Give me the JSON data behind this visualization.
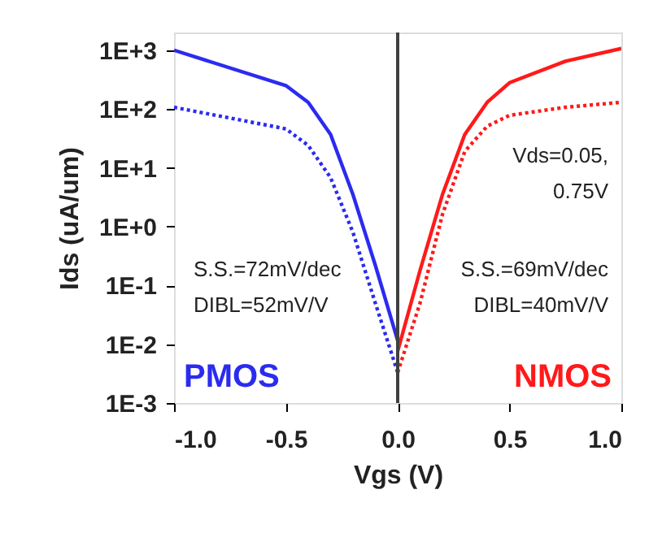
{
  "chart_data": {
    "type": "line",
    "xlabel": "Vgs (V)",
    "ylabel": "Ids (uA/um)",
    "log": "y",
    "grid": false,
    "marker": "none",
    "xlim": [
      -1,
      1
    ],
    "ylim": [
      0.001,
      2000
    ],
    "xticks": [
      {
        "value": -1,
        "label": "-1.0"
      },
      {
        "value": -0.5,
        "label": "-0.5"
      },
      {
        "value": 0,
        "label": "0.0"
      },
      {
        "value": 0.5,
        "label": "0.5"
      },
      {
        "value": 1,
        "label": "1.0"
      }
    ],
    "yticks": [
      {
        "value": 0.001,
        "label": "1E-3"
      },
      {
        "value": 0.01,
        "label": "1E-2"
      },
      {
        "value": 0.1,
        "label": "1E-1"
      },
      {
        "value": 1,
        "label": "1E+0"
      },
      {
        "value": 10,
        "label": "1E+1"
      },
      {
        "value": 100,
        "label": "1E+2"
      },
      {
        "value": 1000,
        "label": "1E+3"
      }
    ],
    "series": [
      {
        "name": "PMOS",
        "color": "#2b2bf0",
        "line_style": "solid",
        "x": [
          -1,
          -0.5,
          -0.4,
          -0.3,
          -0.2,
          -0.1,
          0
        ],
        "values": [
          1000,
          250,
          130,
          37,
          3.5,
          0.22,
          0.0115
        ]
      },
      {
        "color": "#2b2bf0",
        "line_style": "dotted",
        "x": [
          -1,
          -0.5,
          -0.4,
          -0.3,
          -0.2,
          -0.1,
          0
        ],
        "values": [
          107,
          46,
          24,
          6.8,
          0.8,
          0.05,
          0.0033
        ]
      },
      {
        "name": "NMOS",
        "color": "#ff1a1a",
        "line_style": "solid",
        "x": [
          0,
          0.1,
          0.2,
          0.3,
          0.4,
          0.5,
          0.75,
          1
        ],
        "values": [
          0.0076,
          0.18,
          3.5,
          37,
          130,
          280,
          650,
          1070
        ]
      },
      {
        "color": "#ff1a1a",
        "line_style": "dotted",
        "x": [
          0,
          0.1,
          0.2,
          0.3,
          0.4,
          0.5,
          0.75,
          1
        ],
        "values": [
          0.0033,
          0.05,
          1.6,
          19,
          51,
          78,
          107,
          130
        ]
      }
    ],
    "ref_lines": [
      {
        "axis": "x",
        "value": 0,
        "color": "#404040",
        "line_style": "solid"
      }
    ],
    "annotations": [
      "S.S.=72mV/dec\nDIBL=52mV/V",
      "S.S.=69mV/dec\nDIBL=40mV/V",
      "Vds=0.05,\n 0.75V"
    ]
  }
}
